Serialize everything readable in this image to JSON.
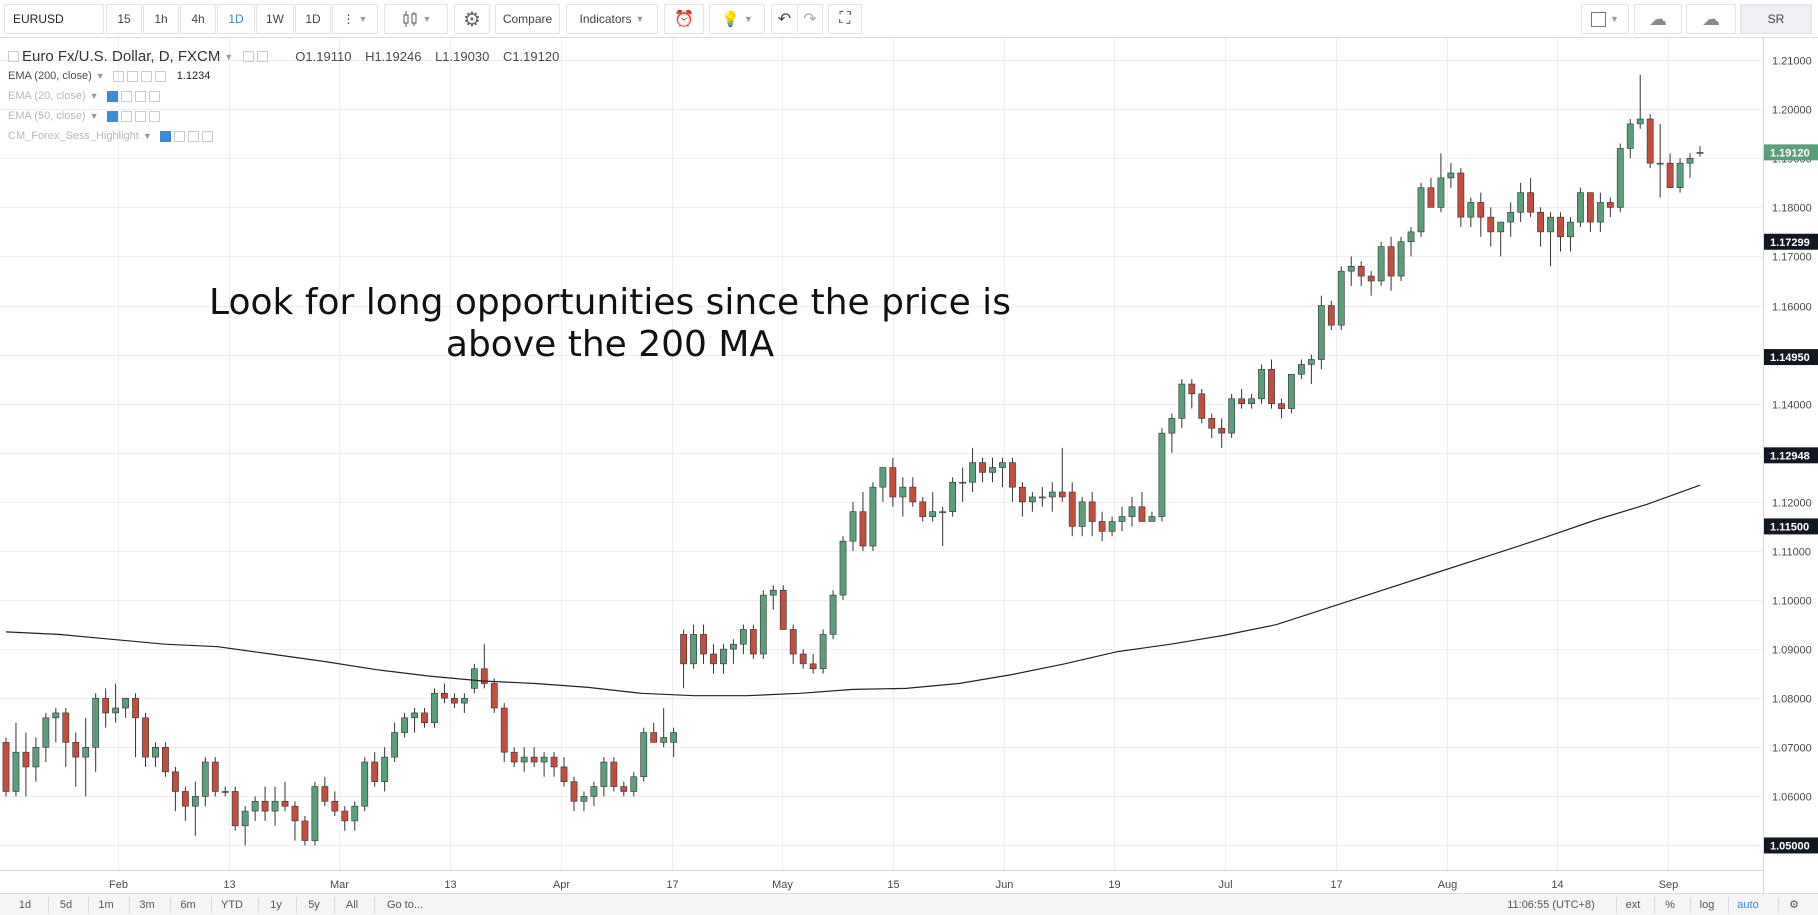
{
  "toolbar": {
    "symbol": "EURUSD",
    "intervals": [
      "15",
      "1h",
      "4h",
      "1D",
      "1W",
      "1D"
    ],
    "active_interval": "1D",
    "compare_label": "Compare",
    "indicators_label": "Indicators",
    "user_label": "SR"
  },
  "legend": {
    "title": "Euro Fx/U.S. Dollar, D, FXCM",
    "open": "O1.19110",
    "high": "H1.19246",
    "low": "L1.19030",
    "close": "C1.19120",
    "indicators": [
      {
        "label": "EMA (200, close)",
        "value": "1.1234",
        "faded": false
      },
      {
        "label": "EMA (20, close)",
        "value": "",
        "faded": true
      },
      {
        "label": "EMA (50, close)",
        "value": "",
        "faded": true
      },
      {
        "label": "CM_Forex_Sess_Highlight",
        "value": "",
        "faded": true
      }
    ]
  },
  "annotation": {
    "line1": "Look for long opportunities since the price is",
    "line2": "above the 200 MA"
  },
  "bottombar": {
    "ranges": [
      "1d",
      "5d",
      "1m",
      "3m",
      "6m",
      "YTD",
      "1y",
      "5y",
      "All"
    ],
    "goto_label": "Go to...",
    "time": "11:06:55 (UTC+8)",
    "ext": "ext",
    "percent": "%",
    "log": "log",
    "auto": "auto"
  },
  "colors": {
    "up": "#5b9e7b",
    "down": "#c34d3f",
    "ma": "#222222",
    "grid": "#eceef1",
    "last_price_bg": "#5b9e7b",
    "axis_label_bg": "#131722"
  },
  "chart_data": {
    "type": "candlestick",
    "title": "Euro Fx/U.S. Dollar, D, FXCM",
    "ylim": [
      1.045,
      1.2145
    ],
    "y_ticks": [
      1.05,
      1.06,
      1.07,
      1.08,
      1.09,
      1.1,
      1.11,
      1.12,
      1.13,
      1.14,
      1.15,
      1.16,
      1.17,
      1.18,
      1.19,
      1.2,
      1.21
    ],
    "x_tick_labels": [
      "Feb",
      "13",
      "Mar",
      "13",
      "Apr",
      "17",
      "May",
      "15",
      "Jun",
      "19",
      "Jul",
      "17",
      "Aug",
      "14",
      "Sep"
    ],
    "price_labels": [
      {
        "value": 1.1912,
        "text": "1.19120",
        "kind": "last"
      },
      {
        "value": 1.17299,
        "text": "1.17299",
        "kind": "marker"
      },
      {
        "value": 1.1495,
        "text": "1.14950",
        "kind": "marker"
      },
      {
        "value": 1.12948,
        "text": "1.12948",
        "kind": "marker"
      },
      {
        "value": 1.115,
        "text": "1.11500",
        "kind": "marker"
      },
      {
        "value": 1.05,
        "text": "1.05000",
        "kind": "marker"
      }
    ],
    "candles": [
      [
        1.071,
        1.072,
        1.06,
        1.061
      ],
      [
        1.061,
        1.075,
        1.06,
        1.069
      ],
      [
        1.069,
        1.073,
        1.06,
        1.066
      ],
      [
        1.066,
        1.072,
        1.063,
        1.07
      ],
      [
        1.07,
        1.077,
        1.067,
        1.076
      ],
      [
        1.076,
        1.078,
        1.071,
        1.077
      ],
      [
        1.077,
        1.078,
        1.066,
        1.071
      ],
      [
        1.071,
        1.073,
        1.062,
        1.068
      ],
      [
        1.068,
        1.076,
        1.06,
        1.07
      ],
      [
        1.07,
        1.081,
        1.065,
        1.08
      ],
      [
        1.08,
        1.082,
        1.074,
        1.077
      ],
      [
        1.077,
        1.083,
        1.075,
        1.078
      ],
      [
        1.078,
        1.08,
        1.076,
        1.08
      ],
      [
        1.08,
        1.081,
        1.068,
        1.076
      ],
      [
        1.076,
        1.077,
        1.066,
        1.068
      ],
      [
        1.068,
        1.071,
        1.066,
        1.07
      ],
      [
        1.07,
        1.071,
        1.064,
        1.065
      ],
      [
        1.065,
        1.066,
        1.057,
        1.061
      ],
      [
        1.061,
        1.062,
        1.055,
        1.058
      ],
      [
        1.058,
        1.063,
        1.052,
        1.06
      ],
      [
        1.06,
        1.068,
        1.058,
        1.067
      ],
      [
        1.067,
        1.068,
        1.06,
        1.061
      ],
      [
        1.061,
        1.062,
        1.06,
        1.061
      ],
      [
        1.061,
        1.062,
        1.053,
        1.054
      ],
      [
        1.054,
        1.058,
        1.05,
        1.057
      ],
      [
        1.057,
        1.06,
        1.055,
        1.059
      ],
      [
        1.059,
        1.062,
        1.055,
        1.057
      ],
      [
        1.057,
        1.062,
        1.054,
        1.059
      ],
      [
        1.059,
        1.063,
        1.057,
        1.058
      ],
      [
        1.058,
        1.059,
        1.051,
        1.055
      ],
      [
        1.055,
        1.056,
        1.05,
        1.051
      ],
      [
        1.051,
        1.063,
        1.05,
        1.062
      ],
      [
        1.062,
        1.064,
        1.058,
        1.059
      ],
      [
        1.059,
        1.061,
        1.056,
        1.057
      ],
      [
        1.057,
        1.058,
        1.053,
        1.055
      ],
      [
        1.055,
        1.059,
        1.053,
        1.058
      ],
      [
        1.058,
        1.068,
        1.057,
        1.067
      ],
      [
        1.067,
        1.069,
        1.062,
        1.063
      ],
      [
        1.063,
        1.07,
        1.061,
        1.068
      ],
      [
        1.068,
        1.075,
        1.067,
        1.073
      ],
      [
        1.073,
        1.077,
        1.072,
        1.076
      ],
      [
        1.076,
        1.078,
        1.073,
        1.077
      ],
      [
        1.077,
        1.078,
        1.074,
        1.075
      ],
      [
        1.075,
        1.082,
        1.074,
        1.081
      ],
      [
        1.081,
        1.083,
        1.079,
        1.08
      ],
      [
        1.08,
        1.081,
        1.078,
        1.079
      ],
      [
        1.079,
        1.081,
        1.077,
        1.08
      ],
      [
        1.082,
        1.087,
        1.081,
        1.086
      ],
      [
        1.086,
        1.091,
        1.082,
        1.083
      ],
      [
        1.083,
        1.084,
        1.077,
        1.078
      ],
      [
        1.078,
        1.079,
        1.067,
        1.069
      ],
      [
        1.069,
        1.07,
        1.066,
        1.067
      ],
      [
        1.067,
        1.07,
        1.065,
        1.068
      ],
      [
        1.068,
        1.07,
        1.066,
        1.067
      ],
      [
        1.067,
        1.069,
        1.064,
        1.068
      ],
      [
        1.068,
        1.069,
        1.064,
        1.066
      ],
      [
        1.066,
        1.068,
        1.062,
        1.063
      ],
      [
        1.063,
        1.064,
        1.057,
        1.059
      ],
      [
        1.059,
        1.061,
        1.057,
        1.06
      ],
      [
        1.06,
        1.063,
        1.058,
        1.062
      ],
      [
        1.062,
        1.068,
        1.06,
        1.067
      ],
      [
        1.067,
        1.068,
        1.061,
        1.062
      ],
      [
        1.062,
        1.063,
        1.06,
        1.061
      ],
      [
        1.061,
        1.065,
        1.06,
        1.064
      ],
      [
        1.064,
        1.074,
        1.063,
        1.073
      ],
      [
        1.073,
        1.075,
        1.071,
        1.071
      ],
      [
        1.071,
        1.078,
        1.07,
        1.072
      ],
      [
        1.071,
        1.074,
        1.068,
        1.073
      ],
      [
        1.093,
        1.094,
        1.082,
        1.087
      ],
      [
        1.087,
        1.095,
        1.086,
        1.093
      ],
      [
        1.093,
        1.095,
        1.087,
        1.089
      ],
      [
        1.089,
        1.091,
        1.085,
        1.087
      ],
      [
        1.087,
        1.091,
        1.085,
        1.09
      ],
      [
        1.09,
        1.092,
        1.087,
        1.091
      ],
      [
        1.091,
        1.095,
        1.089,
        1.094
      ],
      [
        1.094,
        1.095,
        1.088,
        1.089
      ],
      [
        1.089,
        1.102,
        1.088,
        1.101
      ],
      [
        1.101,
        1.103,
        1.098,
        1.102
      ],
      [
        1.102,
        1.103,
        1.094,
        1.094
      ],
      [
        1.094,
        1.095,
        1.087,
        1.089
      ],
      [
        1.089,
        1.09,
        1.086,
        1.087
      ],
      [
        1.087,
        1.089,
        1.085,
        1.086
      ],
      [
        1.086,
        1.094,
        1.085,
        1.093
      ],
      [
        1.093,
        1.102,
        1.092,
        1.101
      ],
      [
        1.101,
        1.113,
        1.1,
        1.112
      ],
      [
        1.112,
        1.12,
        1.11,
        1.118
      ],
      [
        1.118,
        1.122,
        1.11,
        1.111
      ],
      [
        1.111,
        1.124,
        1.11,
        1.123
      ],
      [
        1.123,
        1.127,
        1.12,
        1.127
      ],
      [
        1.127,
        1.129,
        1.119,
        1.121
      ],
      [
        1.121,
        1.125,
        1.117,
        1.123
      ],
      [
        1.123,
        1.125,
        1.119,
        1.12
      ],
      [
        1.12,
        1.121,
        1.116,
        1.117
      ],
      [
        1.117,
        1.122,
        1.116,
        1.118
      ],
      [
        1.118,
        1.119,
        1.111,
        1.118
      ],
      [
        1.118,
        1.125,
        1.117,
        1.124
      ],
      [
        1.124,
        1.127,
        1.12,
        1.124
      ],
      [
        1.124,
        1.131,
        1.122,
        1.128
      ],
      [
        1.128,
        1.129,
        1.124,
        1.126
      ],
      [
        1.126,
        1.129,
        1.124,
        1.127
      ],
      [
        1.127,
        1.129,
        1.123,
        1.128
      ],
      [
        1.128,
        1.129,
        1.12,
        1.123
      ],
      [
        1.123,
        1.124,
        1.117,
        1.12
      ],
      [
        1.12,
        1.122,
        1.118,
        1.121
      ],
      [
        1.121,
        1.123,
        1.119,
        1.121
      ],
      [
        1.121,
        1.124,
        1.118,
        1.122
      ],
      [
        1.122,
        1.131,
        1.12,
        1.121
      ],
      [
        1.122,
        1.124,
        1.113,
        1.115
      ],
      [
        1.115,
        1.121,
        1.113,
        1.12
      ],
      [
        1.12,
        1.122,
        1.113,
        1.116
      ],
      [
        1.116,
        1.118,
        1.112,
        1.114
      ],
      [
        1.114,
        1.117,
        1.113,
        1.116
      ],
      [
        1.116,
        1.119,
        1.114,
        1.117
      ],
      [
        1.117,
        1.121,
        1.115,
        1.119
      ],
      [
        1.119,
        1.122,
        1.116,
        1.116
      ],
      [
        1.116,
        1.118,
        1.116,
        1.117
      ],
      [
        1.117,
        1.135,
        1.116,
        1.134
      ],
      [
        1.134,
        1.138,
        1.13,
        1.137
      ],
      [
        1.137,
        1.145,
        1.135,
        1.144
      ],
      [
        1.144,
        1.145,
        1.139,
        1.142
      ],
      [
        1.142,
        1.143,
        1.136,
        1.137
      ],
      [
        1.137,
        1.138,
        1.133,
        1.135
      ],
      [
        1.135,
        1.137,
        1.131,
        1.134
      ],
      [
        1.134,
        1.142,
        1.133,
        1.141
      ],
      [
        1.141,
        1.143,
        1.139,
        1.14
      ],
      [
        1.14,
        1.142,
        1.139,
        1.141
      ],
      [
        1.141,
        1.148,
        1.14,
        1.147
      ],
      [
        1.147,
        1.149,
        1.139,
        1.14
      ],
      [
        1.14,
        1.141,
        1.137,
        1.139
      ],
      [
        1.139,
        1.146,
        1.138,
        1.146
      ],
      [
        1.146,
        1.149,
        1.145,
        1.148
      ],
      [
        1.148,
        1.15,
        1.144,
        1.149
      ],
      [
        1.149,
        1.162,
        1.147,
        1.16
      ],
      [
        1.16,
        1.161,
        1.155,
        1.156
      ],
      [
        1.156,
        1.168,
        1.155,
        1.167
      ],
      [
        1.167,
        1.17,
        1.164,
        1.168
      ],
      [
        1.168,
        1.169,
        1.164,
        1.166
      ],
      [
        1.166,
        1.167,
        1.162,
        1.165
      ],
      [
        1.165,
        1.173,
        1.164,
        1.172
      ],
      [
        1.172,
        1.174,
        1.163,
        1.166
      ],
      [
        1.166,
        1.174,
        1.165,
        1.173
      ],
      [
        1.173,
        1.176,
        1.17,
        1.175
      ],
      [
        1.175,
        1.185,
        1.174,
        1.184
      ],
      [
        1.184,
        1.186,
        1.18,
        1.18
      ],
      [
        1.18,
        1.191,
        1.179,
        1.186
      ],
      [
        1.186,
        1.189,
        1.184,
        1.187
      ],
      [
        1.187,
        1.188,
        1.176,
        1.178
      ],
      [
        1.178,
        1.182,
        1.176,
        1.181
      ],
      [
        1.181,
        1.183,
        1.174,
        1.178
      ],
      [
        1.178,
        1.18,
        1.172,
        1.175
      ],
      [
        1.175,
        1.177,
        1.17,
        1.177
      ],
      [
        1.177,
        1.181,
        1.174,
        1.179
      ],
      [
        1.179,
        1.185,
        1.177,
        1.183
      ],
      [
        1.183,
        1.186,
        1.178,
        1.179
      ],
      [
        1.179,
        1.18,
        1.172,
        1.175
      ],
      [
        1.175,
        1.179,
        1.168,
        1.178
      ],
      [
        1.178,
        1.179,
        1.171,
        1.174
      ],
      [
        1.174,
        1.178,
        1.171,
        1.177
      ],
      [
        1.177,
        1.184,
        1.176,
        1.183
      ],
      [
        1.183,
        1.183,
        1.175,
        1.177
      ],
      [
        1.177,
        1.183,
        1.175,
        1.181
      ],
      [
        1.181,
        1.182,
        1.178,
        1.18
      ],
      [
        1.18,
        1.193,
        1.179,
        1.192
      ],
      [
        1.192,
        1.198,
        1.19,
        1.197
      ],
      [
        1.197,
        1.207,
        1.196,
        1.198
      ],
      [
        1.198,
        1.199,
        1.188,
        1.189
      ],
      [
        1.189,
        1.197,
        1.182,
        1.189
      ],
      [
        1.189,
        1.191,
        1.185,
        1.184
      ],
      [
        1.184,
        1.19,
        1.183,
        1.189
      ],
      [
        1.189,
        1.191,
        1.186,
        1.19
      ],
      [
        1.1911,
        1.19246,
        1.1903,
        1.1912
      ]
    ],
    "ma_name": "EMA (200, close)",
    "ma": [
      1.0935,
      1.093,
      1.092,
      1.091,
      1.0905,
      1.089,
      1.0875,
      1.0858,
      1.0845,
      1.0835,
      1.083,
      1.0822,
      1.081,
      1.0805,
      1.0805,
      1.081,
      1.0818,
      1.082,
      1.083,
      1.0848,
      1.087,
      1.0895,
      1.091,
      1.0928,
      1.095,
      1.0985,
      1.102,
      1.1055,
      1.109,
      1.1125,
      1.1162,
      1.1195,
      1.1234
    ]
  }
}
